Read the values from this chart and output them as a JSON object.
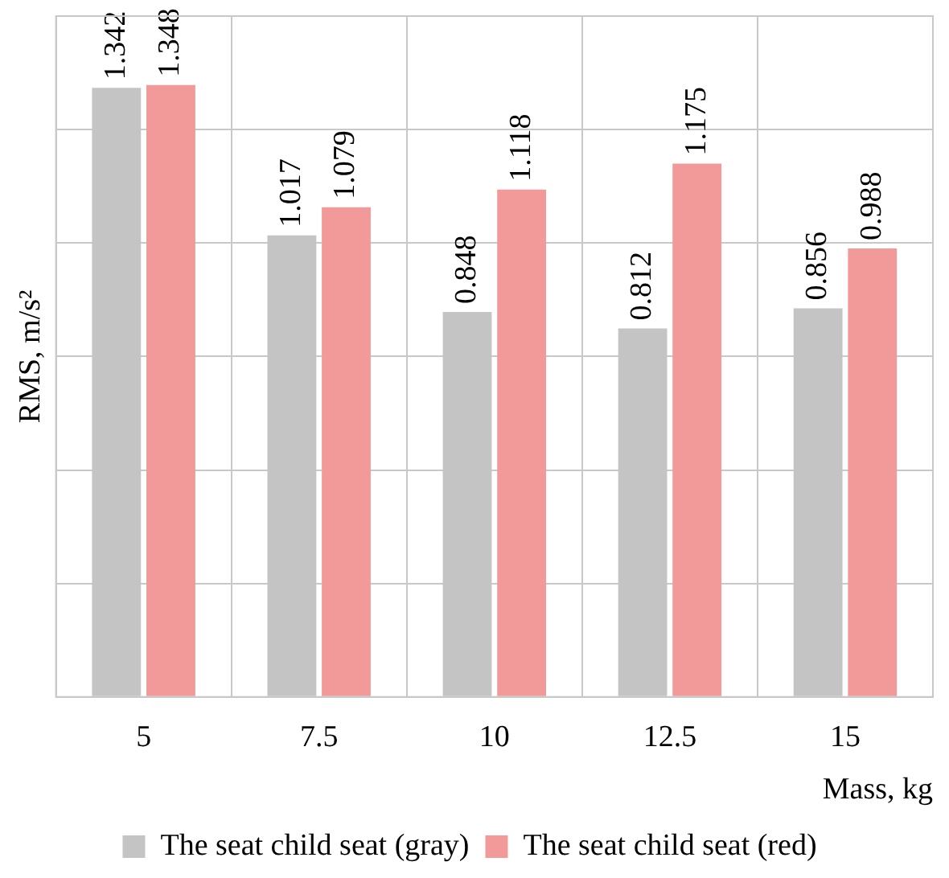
{
  "chart_data": {
    "type": "bar",
    "xlabel": "Mass, kg",
    "ylabel": "RMS, m/s²",
    "categories": [
      "5",
      "7.5",
      "10",
      "12.5",
      "15"
    ],
    "series": [
      {
        "name": "The seat child seat (gray)",
        "color": "#c4c4c4",
        "values": [
          1.342,
          1.017,
          0.848,
          0.812,
          0.856
        ]
      },
      {
        "name": "The seat child seat (red)",
        "color": "#f29a9a",
        "values": [
          1.348,
          1.079,
          1.118,
          1.175,
          0.988
        ]
      }
    ],
    "ylim": [
      0,
      1.5
    ],
    "yticks": [
      {
        "value": 0,
        "label": null
      },
      {
        "value": 0.25,
        "label": null
      },
      {
        "value": 0.5,
        "label": null
      },
      {
        "value": 0.75,
        "label": null
      },
      {
        "value": 1,
        "label": null
      },
      {
        "value": 1.25,
        "label": null
      },
      {
        "value": 1.5,
        "label": null
      }
    ],
    "tick_labels": "x",
    "grid": true,
    "legend": "bottom",
    "data_labels": true
  }
}
